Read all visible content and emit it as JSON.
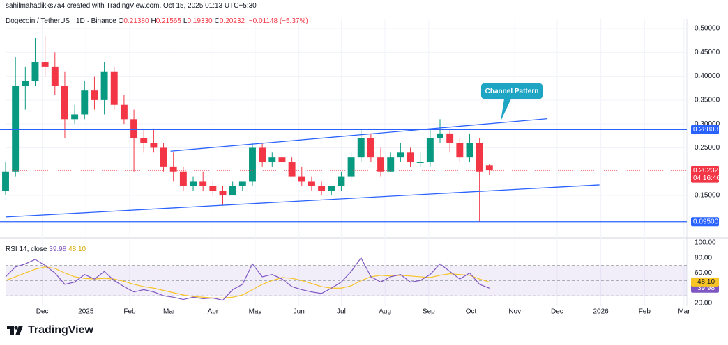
{
  "header": {
    "credit": "sahilmahadikks7a4 created with TradingView.com, Oct 15, 2025 01:13 UTC+5:30",
    "symbol": "Dogecoin / TetherUS · 1D · Binance",
    "ohlc": [
      [
        "O",
        "0.21380"
      ],
      [
        "H",
        "0.21565"
      ],
      [
        "L",
        "0.19330"
      ],
      [
        "C",
        "0.20232"
      ]
    ],
    "change": "−0.01148 (−5.37%)",
    "brand": "TradingView"
  },
  "chart_data": [
    {
      "type": "candlestick",
      "up_color": "#089981",
      "down_color": "#f23645",
      "x": [
        4,
        11,
        18,
        25,
        32,
        39,
        46,
        53,
        60,
        67,
        74,
        81,
        88,
        95,
        102,
        109,
        116,
        123,
        130,
        137,
        144,
        151,
        158,
        165,
        172,
        179,
        186,
        193,
        200,
        207,
        214,
        221,
        228,
        235,
        242,
        249,
        256,
        263,
        270,
        277,
        284,
        291,
        298,
        305,
        312,
        319,
        326,
        333,
        340,
        347
      ],
      "open": [
        0.16,
        0.2,
        0.38,
        0.39,
        0.43,
        0.42,
        0.38,
        0.31,
        0.32,
        0.37,
        0.35,
        0.41,
        0.34,
        0.31,
        0.27,
        0.26,
        0.25,
        0.21,
        0.2,
        0.17,
        0.18,
        0.17,
        0.16,
        0.15,
        0.17,
        0.18,
        0.25,
        0.22,
        0.23,
        0.22,
        0.19,
        0.18,
        0.17,
        0.16,
        0.17,
        0.19,
        0.23,
        0.27,
        0.23,
        0.2,
        0.23,
        0.24,
        0.22,
        0.22,
        0.27,
        0.28,
        0.26,
        0.23,
        0.26,
        0.2138
      ],
      "high": [
        0.22,
        0.44,
        0.42,
        0.48,
        0.484,
        0.45,
        0.41,
        0.34,
        0.39,
        0.4,
        0.43,
        0.42,
        0.36,
        0.33,
        0.29,
        0.29,
        0.26,
        0.24,
        0.21,
        0.19,
        0.2,
        0.18,
        0.17,
        0.18,
        0.18,
        0.26,
        0.26,
        0.24,
        0.24,
        0.23,
        0.21,
        0.19,
        0.18,
        0.17,
        0.2,
        0.24,
        0.29,
        0.28,
        0.25,
        0.24,
        0.26,
        0.25,
        0.24,
        0.29,
        0.31,
        0.29,
        0.27,
        0.28,
        0.27,
        0.21565
      ],
      "low": [
        0.15,
        0.19,
        0.33,
        0.38,
        0.4,
        0.36,
        0.27,
        0.3,
        0.31,
        0.33,
        0.32,
        0.33,
        0.3,
        0.2,
        0.24,
        0.24,
        0.2,
        0.18,
        0.16,
        0.16,
        0.16,
        0.15,
        0.13,
        0.15,
        0.16,
        0.17,
        0.21,
        0.21,
        0.21,
        0.19,
        0.17,
        0.16,
        0.15,
        0.15,
        0.16,
        0.18,
        0.22,
        0.22,
        0.19,
        0.2,
        0.22,
        0.21,
        0.21,
        0.21,
        0.26,
        0.24,
        0.22,
        0.22,
        0.095,
        0.1933
      ],
      "close": [
        0.2,
        0.38,
        0.39,
        0.43,
        0.42,
        0.38,
        0.31,
        0.32,
        0.37,
        0.35,
        0.41,
        0.34,
        0.31,
        0.27,
        0.26,
        0.25,
        0.21,
        0.2,
        0.17,
        0.18,
        0.17,
        0.16,
        0.15,
        0.17,
        0.18,
        0.25,
        0.22,
        0.23,
        0.22,
        0.19,
        0.18,
        0.17,
        0.16,
        0.17,
        0.19,
        0.23,
        0.27,
        0.23,
        0.2,
        0.23,
        0.24,
        0.22,
        0.22,
        0.27,
        0.28,
        0.26,
        0.23,
        0.26,
        0.2,
        0.20232
      ],
      "xlim": [
        4,
        487
      ],
      "xticks": [
        {
          "value": 30,
          "label": "Dec"
        },
        {
          "value": 61,
          "label": "2025"
        },
        {
          "value": 92,
          "label": "Feb"
        },
        {
          "value": 120,
          "label": "Mar"
        },
        {
          "value": 151,
          "label": "Apr"
        },
        {
          "value": 181,
          "label": "May"
        },
        {
          "value": 212,
          "label": "Jun"
        },
        {
          "value": 242,
          "label": "Jul"
        },
        {
          "value": 273,
          "label": "Aug"
        },
        {
          "value": 304,
          "label": "Sep"
        },
        {
          "value": 334,
          "label": "Oct"
        },
        {
          "value": 365,
          "label": "Nov"
        },
        {
          "value": 395,
          "label": "Dec"
        },
        {
          "value": 426,
          "label": "2026"
        },
        {
          "value": 457,
          "label": "Feb"
        },
        {
          "value": 485,
          "label": "Mar"
        }
      ],
      "ylim": [
        0.064,
        0.519
      ],
      "yticks": [
        {
          "value": 0.5,
          "label": "0.50000"
        },
        {
          "value": 0.45,
          "label": "0.45000"
        },
        {
          "value": 0.4,
          "label": "0.40000"
        },
        {
          "value": 0.35,
          "label": "0.35000"
        },
        {
          "value": 0.3,
          "label": "0.30000"
        },
        {
          "value": 0.25,
          "label": "0.25000"
        },
        {
          "value": 0.15,
          "label": "0.15000"
        }
      ],
      "grid": true,
      "hlines": [
        {
          "value": 0.28803,
          "label": "0.28803",
          "color": "#2962ff"
        },
        {
          "value": 0.095,
          "label": "0.09500",
          "color": "#2962ff"
        }
      ],
      "price_line": {
        "value": 0.20232,
        "label": "0.20232",
        "countdown": "04:16:46",
        "color": "#f23645"
      },
      "channel": [
        {
          "x": [
            121,
            388
          ],
          "y": [
            0.243,
            0.311
          ]
        },
        {
          "x": [
            4,
            425
          ],
          "y": [
            0.105,
            0.172
          ]
        }
      ],
      "annotation": "Channel Pattern"
    },
    {
      "type": "rsi",
      "title": "RSI",
      "params": "14, close",
      "x": [
        4,
        11,
        18,
        25,
        32,
        39,
        46,
        53,
        60,
        67,
        74,
        81,
        88,
        95,
        102,
        109,
        116,
        123,
        130,
        137,
        144,
        151,
        158,
        165,
        172,
        179,
        186,
        193,
        200,
        207,
        214,
        221,
        228,
        235,
        242,
        249,
        256,
        263,
        270,
        277,
        284,
        291,
        298,
        305,
        312,
        319,
        326,
        333,
        340,
        347
      ],
      "series": [
        {
          "name": "RSI",
          "color": "#7e57c2",
          "label": "39.98",
          "values": [
            55,
            68,
            72,
            78,
            70,
            60,
            45,
            48,
            58,
            52,
            62,
            50,
            42,
            35,
            38,
            35,
            30,
            28,
            25,
            28,
            26,
            27,
            24,
            38,
            45,
            72,
            55,
            58,
            52,
            42,
            38,
            35,
            33,
            40,
            48,
            62,
            80,
            55,
            48,
            55,
            58,
            48,
            50,
            58,
            72,
            62,
            52,
            60,
            45,
            39.98
          ]
        },
        {
          "name": "MA",
          "color": "#f7c325",
          "label": "48.10",
          "values": [
            50,
            55,
            60,
            65,
            68,
            66,
            60,
            55,
            53,
            52,
            53,
            52,
            49,
            45,
            42,
            40,
            37,
            34,
            31,
            29,
            28,
            27,
            27,
            28,
            31,
            38,
            45,
            50,
            54,
            53,
            50,
            46,
            42,
            40,
            40,
            43,
            50,
            55,
            57,
            56,
            57,
            56,
            55,
            54,
            57,
            59,
            58,
            57,
            52,
            48.1
          ]
        }
      ],
      "levels": [
        30,
        50,
        70
      ],
      "ylim": [
        16.3,
        104.6
      ],
      "yticks": [
        {
          "value": 100,
          "label": "100.00"
        },
        {
          "value": 80,
          "label": "80.00"
        },
        {
          "value": 60,
          "label": "60.00"
        },
        {
          "value": 20,
          "label": "20.00"
        }
      ]
    }
  ]
}
